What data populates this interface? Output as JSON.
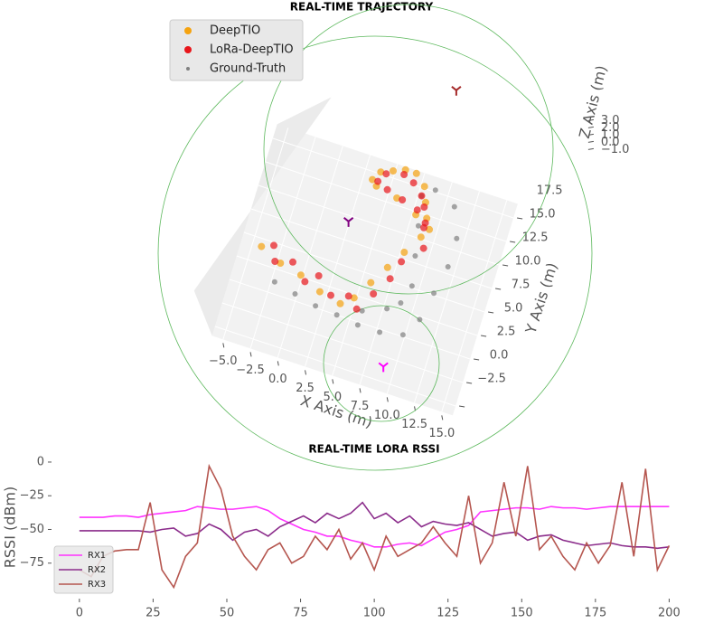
{
  "chart_data": [
    {
      "type": "scatter3d",
      "title": "REAL-TIME TRAJECTORY",
      "xlabel": "X Axis (m)",
      "ylabel": "Y Axis (m)",
      "zlabel": "Z Axis (m)",
      "xlim": [
        -6,
        16
      ],
      "ylim": [
        -3.5,
        19
      ],
      "zlim": [
        -1,
        3
      ],
      "xticks": [
        {
          "value": -5,
          "label": "−5.0"
        },
        {
          "value": -2.5,
          "label": "−2.5"
        },
        {
          "value": 0,
          "label": "0.0"
        },
        {
          "value": 2.5,
          "label": "2.5"
        },
        {
          "value": 5,
          "label": "5.0"
        },
        {
          "value": 7.5,
          "label": "7.5"
        },
        {
          "value": 10,
          "label": "10.0"
        },
        {
          "value": 12.5,
          "label": "12.5"
        },
        {
          "value": 15,
          "label": "15.0"
        }
      ],
      "yticks": [
        {
          "value": -2.5,
          "label": "−2.5"
        },
        {
          "value": 0,
          "label": "0.0"
        },
        {
          "value": 2.5,
          "label": "2.5"
        },
        {
          "value": 5,
          "label": "5.0"
        },
        {
          "value": 7.5,
          "label": "7.5"
        },
        {
          "value": 10,
          "label": "10.0"
        },
        {
          "value": 12.5,
          "label": "12.5"
        },
        {
          "value": 15,
          "label": "15.0"
        },
        {
          "value": 17.5,
          "label": "17.5"
        }
      ],
      "zticks": [
        {
          "value": -1,
          "label": "−1.0"
        },
        {
          "value": 0,
          "label": "0.0"
        },
        {
          "value": 1,
          "label": "1.0"
        },
        {
          "value": 2,
          "label": "2.0"
        },
        {
          "value": 3,
          "label": "3.0"
        }
      ],
      "legend": "upper left",
      "series": [
        {
          "name": "DeepTIO",
          "color": "#f5a30f",
          "x": [
            -4,
            -2,
            0,
            2,
            4,
            5,
            6,
            7,
            8,
            9,
            9,
            8.5,
            8,
            7,
            6,
            5,
            4,
            3.5,
            4,
            6,
            8,
            9.5
          ],
          "y": [
            6,
            5,
            4.5,
            3.5,
            3,
            4,
            6,
            8,
            10,
            12,
            14,
            15.5,
            17,
            18,
            18,
            17.5,
            17,
            16,
            15.5,
            15,
            14,
            13
          ],
          "z": [
            0,
            0,
            0,
            0,
            0,
            0,
            0,
            0,
            0,
            0,
            0,
            0,
            0,
            0,
            0,
            0,
            0,
            0,
            0,
            0,
            0,
            0
          ]
        },
        {
          "name": "LoRa-DeepTIO",
          "color": "#e8161b",
          "x": [
            -3,
            -2.5,
            -1,
            0.5,
            1.5,
            3,
            4.5,
            5.5,
            6.5,
            7.5,
            8,
            9.5,
            9,
            8.5,
            8,
            7,
            6,
            4.5,
            4,
            5,
            6.5,
            8,
            9
          ],
          "y": [
            6.5,
            5,
            5.5,
            4,
            5,
            3.5,
            4,
            3,
            5,
            7,
            9,
            11,
            13,
            15,
            16,
            17,
            17.5,
            17,
            16,
            15.5,
            15,
            14.5,
            13.5
          ],
          "z": [
            0,
            0,
            0,
            0,
            0,
            0,
            0,
            0,
            0,
            0,
            0,
            0,
            0,
            0,
            0,
            0,
            0,
            0,
            0,
            0,
            0,
            0,
            0
          ]
        },
        {
          "name": "Ground-Truth",
          "color": "#808080",
          "x": [
            -2,
            0,
            2,
            4,
            6,
            8,
            10,
            11,
            11.5,
            12,
            12,
            11,
            9,
            8,
            8.5,
            9,
            9.5,
            9,
            8,
            6
          ],
          "y": [
            3,
            2.5,
            2,
            1.8,
            1.5,
            1.5,
            2,
            4,
            7,
            10,
            13,
            16,
            17,
            16,
            13,
            10,
            7,
            5,
            4,
            3
          ],
          "z": [
            0,
            0,
            0,
            0,
            0,
            0,
            0,
            0,
            0,
            0,
            0,
            0,
            0,
            0,
            0,
            0,
            0,
            0,
            0,
            0
          ]
        }
      ],
      "receivers": {
        "x": [
          9,
          2.4,
          8
        ],
        "y": [
          -1,
          11.9,
          28
        ],
        "z": [
          -1,
          -1,
          -1
        ],
        "colors": [
          "#ff00ff",
          "#800080",
          "#a52a2a"
        ]
      }
    },
    {
      "type": "line",
      "title": "REAL-TIME LORA RSSI",
      "ylabel": "RSSI (dBm)",
      "xlim": [
        -7,
        206
      ],
      "ylim": [
        -100,
        4
      ],
      "xticks": [
        0,
        25,
        50,
        75,
        100,
        125,
        150,
        175,
        200
      ],
      "yticks": [
        0,
        {
          "value": -25,
          "label": "−25"
        },
        {
          "value": -50,
          "label": "−50"
        },
        {
          "value": -75,
          "label": "−75"
        }
      ],
      "legend": "lower left",
      "x": [
        0,
        4,
        8,
        12,
        16,
        20,
        24,
        28,
        32,
        36,
        40,
        44,
        48,
        52,
        56,
        60,
        64,
        68,
        72,
        76,
        80,
        84,
        88,
        92,
        96,
        100,
        104,
        108,
        112,
        116,
        120,
        124,
        128,
        132,
        136,
        140,
        144,
        148,
        152,
        156,
        160,
        164,
        168,
        172,
        176,
        180,
        184,
        188,
        192,
        196,
        200
      ],
      "series": [
        {
          "name": "RX1",
          "color": "#ff33ff",
          "values": [
            -41,
            -41,
            -41,
            -40,
            -40,
            -41,
            -39,
            -38,
            -37,
            -36,
            -33,
            -34,
            -35,
            -35,
            -34,
            -33,
            -36,
            -42,
            -46,
            -50,
            -52,
            -55,
            -55,
            -58,
            -60,
            -63,
            -63,
            -61,
            -60,
            -62,
            -57,
            -52,
            -50,
            -47,
            -37,
            -36,
            -35,
            -34,
            -34,
            -35,
            -33,
            -34,
            -34,
            -35,
            -34,
            -33,
            -33,
            -33,
            -33,
            -33,
            -33
          ]
        },
        {
          "name": "RX2",
          "color": "#8b2c8b",
          "values": [
            -51,
            -51,
            -51,
            -51,
            -51,
            -51,
            -52,
            -50,
            -49,
            -55,
            -53,
            -46,
            -50,
            -58,
            -52,
            -50,
            -55,
            -48,
            -44,
            -40,
            -45,
            -38,
            -42,
            -38,
            -30,
            -42,
            -38,
            -45,
            -40,
            -48,
            -44,
            -46,
            -47,
            -45,
            -50,
            -55,
            -53,
            -52,
            -58,
            -55,
            -54,
            -58,
            -60,
            -62,
            -61,
            -60,
            -62,
            -63,
            -63,
            -64,
            -63
          ]
        },
        {
          "name": "RX3",
          "color": "#b5564f",
          "values": [
            -80,
            -85,
            -70,
            -66,
            -65,
            -65,
            -30,
            -80,
            -93,
            -70,
            -60,
            -3,
            -20,
            -55,
            -70,
            -80,
            -65,
            -60,
            -75,
            -70,
            -55,
            -65,
            -50,
            -72,
            -60,
            -80,
            -55,
            -70,
            -65,
            -60,
            -48,
            -60,
            -70,
            -25,
            -75,
            -60,
            -15,
            -55,
            -3,
            -65,
            -55,
            -70,
            -80,
            -60,
            -75,
            -62,
            -15,
            -70,
            -5,
            -80,
            -62
          ]
        }
      ]
    }
  ]
}
